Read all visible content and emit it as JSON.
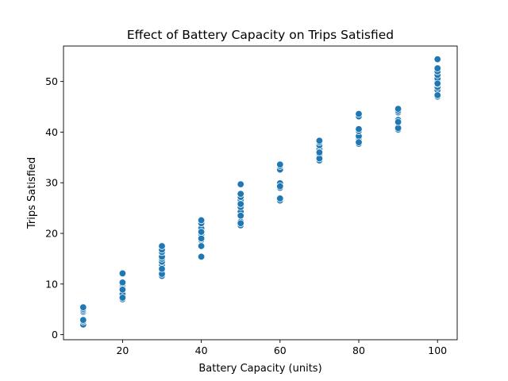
{
  "chart_data": {
    "type": "scatter",
    "title": "Effect of Battery Capacity on Trips Satisfied",
    "xlabel": "Battery Capacity (units)",
    "ylabel": "Trips Satisfied",
    "xlim": [
      5,
      105
    ],
    "ylim": [
      -1,
      57
    ],
    "xticks": [
      20,
      40,
      60,
      80,
      100
    ],
    "yticks": [
      0,
      10,
      20,
      30,
      40,
      50
    ],
    "grid": false,
    "color": "#1f77b4",
    "series": [
      {
        "x": [
          10,
          10,
          10,
          10,
          10,
          10,
          10,
          20,
          20,
          20,
          20,
          20,
          20,
          20,
          20,
          20,
          20,
          30,
          30,
          30,
          30,
          30,
          30,
          30,
          30,
          30,
          30,
          30,
          30,
          40,
          40,
          40,
          40,
          40,
          40,
          40,
          40,
          40,
          40,
          40,
          50,
          50,
          50,
          50,
          50,
          50,
          50,
          50,
          50,
          50,
          50,
          50,
          50,
          60,
          60,
          60,
          60,
          60,
          60,
          60,
          60,
          60,
          70,
          70,
          70,
          70,
          70,
          70,
          70,
          70,
          70,
          70,
          80,
          80,
          80,
          80,
          80,
          80,
          80,
          80,
          80,
          90,
          90,
          90,
          90,
          90,
          90,
          90,
          90,
          100,
          100,
          100,
          100,
          100,
          100,
          100,
          100,
          100,
          100,
          100,
          100,
          100
        ],
        "y": [
          2.0,
          2.6,
          4.5,
          4.8,
          5.1,
          5.4,
          2.9,
          7.0,
          7.6,
          8.0,
          9.0,
          9.6,
          10.0,
          10.3,
          12.1,
          8.9,
          7.3,
          11.6,
          12.4,
          13.3,
          13.8,
          14.4,
          15.0,
          15.4,
          16.3,
          16.8,
          17.5,
          12.0,
          13.0,
          15.4,
          17.6,
          18.7,
          19.3,
          19.8,
          21.0,
          22.0,
          22.6,
          19.0,
          20.3,
          17.5,
          21.6,
          22.3,
          23.8,
          24.3,
          25.2,
          26.0,
          26.6,
          27.2,
          27.8,
          29.7,
          22.0,
          25.8,
          23.5,
          26.5,
          26.9,
          29.0,
          29.5,
          29.9,
          32.6,
          33.3,
          33.6,
          29.3,
          34.4,
          35.0,
          35.6,
          36.2,
          36.7,
          37.4,
          38.0,
          38.3,
          34.8,
          36.0,
          37.7,
          38.3,
          38.8,
          39.2,
          40.2,
          40.6,
          43.1,
          43.6,
          38.0,
          40.5,
          41.0,
          42.4,
          43.9,
          44.2,
          44.6,
          40.8,
          42.0,
          47.0,
          47.5,
          48.3,
          48.9,
          49.5,
          50.0,
          50.6,
          51.3,
          52.0,
          52.6,
          54.4,
          47.3,
          49.6
        ]
      }
    ]
  }
}
